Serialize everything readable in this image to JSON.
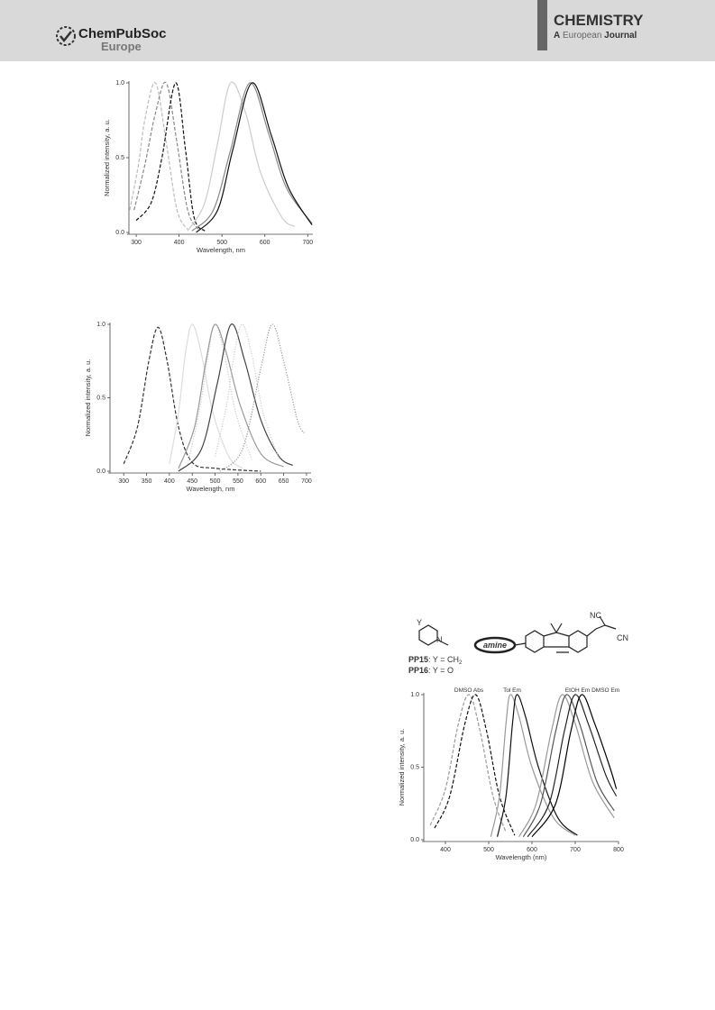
{
  "header": {
    "brand": "ChemPubSoc",
    "brand_sub": "Europe",
    "journal": "CHEMISTRY",
    "journal_a": "A",
    "journal_b": "European",
    "journal_c": "Journal"
  },
  "scheme": {
    "y_label": "Y",
    "n_label": "N",
    "pp15": "PP15",
    "pp15_rest": ": Y = CH",
    "pp15_sub": "2",
    "pp16": "PP16",
    "pp16_rest": ": Y = O",
    "amine": "amine",
    "nc": "NC",
    "cn": "CN"
  },
  "chart_data": [
    {
      "type": "line",
      "xlabel": "Wavelength, nm",
      "ylabel": "Normalized intensity, a. u.",
      "xlim": [
        283,
        712
      ],
      "ylim": [
        0,
        1
      ],
      "xticks": [
        300,
        400,
        500,
        600,
        700
      ],
      "yticks": [
        {
          "value": 0,
          "label": "0.0"
        },
        {
          "value": 0.5,
          "label": "0.5"
        },
        {
          "value": 1,
          "label": "1.0"
        }
      ],
      "series": [
        {
          "color": "#bbbbbb",
          "dash": "dashed",
          "x": [
            285,
            305,
            320,
            345,
            370,
            395,
            420
          ],
          "values": [
            0.15,
            0.45,
            0.75,
            1.0,
            0.6,
            0.15,
            0.02
          ]
        },
        {
          "color": "#888888",
          "dash": "dashed",
          "x": [
            295,
            320,
            345,
            370,
            395,
            420,
            445
          ],
          "values": [
            0.15,
            0.45,
            0.8,
            1.0,
            0.6,
            0.15,
            0.02
          ]
        },
        {
          "color": "#111111",
          "dash": "dashed",
          "x": [
            300,
            335,
            360,
            392,
            415,
            435,
            460
          ],
          "values": [
            0.08,
            0.2,
            0.5,
            1.0,
            0.55,
            0.1,
            0.01
          ]
        },
        {
          "color": "#cccccc",
          "dash": "solid",
          "x": [
            420,
            460,
            490,
            520,
            555,
            590,
            640,
            670
          ],
          "values": [
            0.01,
            0.2,
            0.6,
            1.0,
            0.8,
            0.4,
            0.1,
            0.04
          ]
        },
        {
          "color": "#888888",
          "dash": "solid",
          "x": [
            430,
            480,
            520,
            565,
            610,
            650,
            710
          ],
          "values": [
            0.01,
            0.15,
            0.55,
            1.0,
            0.65,
            0.3,
            0.06
          ]
        },
        {
          "color": "#111111",
          "dash": "solid",
          "x": [
            440,
            490,
            525,
            570,
            615,
            655,
            710
          ],
          "values": [
            0.0,
            0.15,
            0.55,
            1.0,
            0.65,
            0.3,
            0.05
          ]
        }
      ]
    },
    {
      "type": "line",
      "xlabel": "Wavelength, nm",
      "ylabel": "Normalized intensity, a. u.",
      "xlim": [
        270,
        710
      ],
      "ylim": [
        0,
        1
      ],
      "xticks": [
        300,
        350,
        400,
        450,
        500,
        550,
        600,
        650,
        700
      ],
      "yticks": [
        {
          "value": 0,
          "label": "0.0"
        },
        {
          "value": 0.5,
          "label": "0.5"
        },
        {
          "value": 1,
          "label": "1.0"
        }
      ],
      "series": [
        {
          "color": "#333333",
          "dash": "dashed",
          "x": [
            300,
            330,
            355,
            375,
            395,
            420,
            450,
            500,
            600
          ],
          "values": [
            0.05,
            0.3,
            0.75,
            0.98,
            0.75,
            0.3,
            0.06,
            0.02,
            0.0
          ]
        },
        {
          "color": "#dddddd",
          "dash": "solid",
          "x": [
            400,
            420,
            435,
            450,
            470,
            495,
            530,
            560
          ],
          "values": [
            0.05,
            0.4,
            0.8,
            1.0,
            0.8,
            0.4,
            0.1,
            0.02
          ]
        },
        {
          "color": "#cccccc",
          "dash": "dotted",
          "x": [
            440,
            465,
            485,
            500,
            520,
            545,
            580
          ],
          "values": [
            0.05,
            0.4,
            0.8,
            1.0,
            0.8,
            0.4,
            0.08
          ]
        },
        {
          "color": "#999999",
          "dash": "solid",
          "x": [
            420,
            455,
            480,
            500,
            525,
            555,
            600,
            650
          ],
          "values": [
            0.02,
            0.3,
            0.75,
            1.0,
            0.8,
            0.45,
            0.12,
            0.03
          ]
        },
        {
          "color": "#444444",
          "dash": "solid",
          "x": [
            420,
            470,
            505,
            535,
            565,
            600,
            640,
            670
          ],
          "values": [
            0.0,
            0.15,
            0.6,
            1.0,
            0.75,
            0.35,
            0.1,
            0.04
          ]
        },
        {
          "color": "#cccccc",
          "dash": "dotted",
          "x": [
            500,
            525,
            545,
            560,
            580,
            605,
            640
          ],
          "values": [
            0.1,
            0.45,
            0.85,
            1.0,
            0.8,
            0.4,
            0.08
          ]
        },
        {
          "color": "#999999",
          "dash": "dotted",
          "x": [
            510,
            560,
            600,
            625,
            650,
            680,
            695
          ],
          "values": [
            0.0,
            0.15,
            0.7,
            1.0,
            0.75,
            0.35,
            0.26
          ]
        }
      ]
    },
    {
      "type": "line",
      "xlabel": "Wavelength (nm)",
      "ylabel": "Normalized intensity, a. u.",
      "xlim": [
        350,
        800
      ],
      "ylim": [
        0,
        1
      ],
      "xticks": [
        400,
        500,
        600,
        700,
        800
      ],
      "yticks": [
        {
          "value": 0,
          "label": "0.0"
        },
        {
          "value": 0.5,
          "label": "0.5"
        },
        {
          "value": 1,
          "label": "1.0"
        }
      ],
      "annotations": [
        "DMSO Abs",
        "Tol Em",
        "EtOH Em DMSO Em"
      ],
      "series": [
        {
          "color": "#999999",
          "dash": "dashed",
          "x": [
            365,
            400,
            430,
            455,
            480,
            510,
            540
          ],
          "values": [
            0.1,
            0.35,
            0.8,
            1.0,
            0.75,
            0.3,
            0.05
          ]
        },
        {
          "color": "#111111",
          "dash": "dashed",
          "x": [
            375,
            410,
            445,
            470,
            495,
            525,
            560
          ],
          "values": [
            0.08,
            0.3,
            0.8,
            1.0,
            0.75,
            0.3,
            0.03
          ]
        },
        {
          "color": "#999999",
          "dash": "solid",
          "x": [
            505,
            525,
            540,
            550,
            570,
            600,
            650,
            700
          ],
          "values": [
            0.02,
            0.3,
            0.8,
            1.0,
            0.85,
            0.5,
            0.15,
            0.03
          ]
        },
        {
          "color": "#111111",
          "dash": "solid",
          "x": [
            520,
            540,
            555,
            565,
            585,
            615,
            660,
            705
          ],
          "values": [
            0.02,
            0.3,
            0.8,
            1.0,
            0.85,
            0.5,
            0.15,
            0.03
          ]
        },
        {
          "color": "#999999",
          "dash": "solid",
          "x": [
            570,
            610,
            645,
            670,
            700,
            740,
            790
          ],
          "values": [
            0.02,
            0.25,
            0.75,
            1.0,
            0.8,
            0.4,
            0.15
          ]
        },
        {
          "color": "#555555",
          "dash": "solid",
          "x": [
            580,
            620,
            655,
            680,
            710,
            750,
            790
          ],
          "values": [
            0.02,
            0.25,
            0.75,
            1.0,
            0.8,
            0.4,
            0.2
          ]
        },
        {
          "color": "#222222",
          "dash": "solid",
          "x": [
            590,
            640,
            675,
            700,
            730,
            770,
            795
          ],
          "values": [
            0.02,
            0.25,
            0.75,
            1.0,
            0.8,
            0.45,
            0.3
          ]
        },
        {
          "color": "#000000",
          "dash": "solid",
          "x": [
            600,
            655,
            690,
            715,
            745,
            780,
            795
          ],
          "values": [
            0.02,
            0.25,
            0.75,
            1.0,
            0.8,
            0.5,
            0.35
          ]
        }
      ]
    }
  ]
}
